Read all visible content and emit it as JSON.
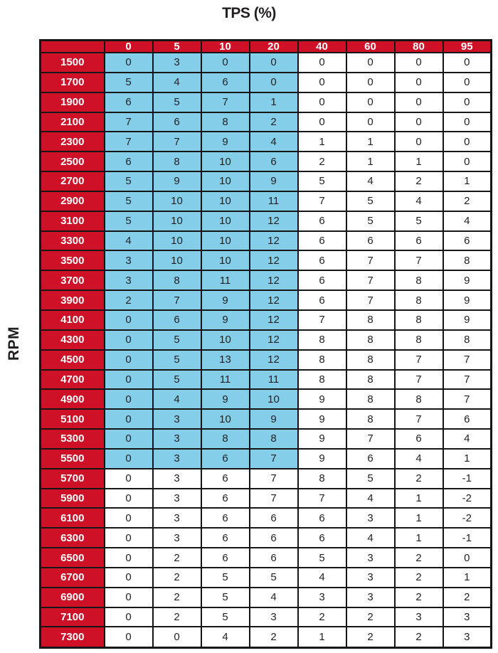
{
  "title": "TPS (%)",
  "y_axis_label": "RPM",
  "colors": {
    "header_bg": "#ce1126",
    "header_text": "#ffffff",
    "highlight_bg": "#85ceea",
    "cell_bg": "#ffffff",
    "cell_text": "#231f20",
    "border": "#161616"
  },
  "chart_data": {
    "type": "table",
    "title": "TPS (%)",
    "xlabel": "TPS (%)",
    "ylabel": "RPM",
    "columns": [
      "0",
      "5",
      "10",
      "20",
      "40",
      "60",
      "80",
      "95"
    ],
    "rpm": [
      "1500",
      "1700",
      "1900",
      "2100",
      "2300",
      "2500",
      "2700",
      "2900",
      "3100",
      "3300",
      "3500",
      "3700",
      "3900",
      "4100",
      "4300",
      "4500",
      "4700",
      "4900",
      "5100",
      "5300",
      "5500",
      "5700",
      "5900",
      "6100",
      "6300",
      "6500",
      "6700",
      "6900",
      "7100",
      "7300"
    ],
    "values": [
      [
        0,
        3,
        0,
        0,
        0,
        0,
        0,
        0
      ],
      [
        5,
        4,
        6,
        0,
        0,
        0,
        0,
        0
      ],
      [
        6,
        5,
        7,
        1,
        0,
        0,
        0,
        0
      ],
      [
        7,
        6,
        8,
        2,
        0,
        0,
        0,
        0
      ],
      [
        7,
        7,
        9,
        4,
        1,
        1,
        0,
        0
      ],
      [
        6,
        8,
        10,
        6,
        2,
        1,
        1,
        0
      ],
      [
        5,
        9,
        10,
        9,
        5,
        4,
        2,
        1
      ],
      [
        5,
        10,
        10,
        11,
        7,
        5,
        4,
        2
      ],
      [
        5,
        10,
        10,
        12,
        6,
        5,
        5,
        4
      ],
      [
        4,
        10,
        10,
        12,
        6,
        6,
        6,
        6
      ],
      [
        3,
        10,
        10,
        12,
        6,
        7,
        7,
        8
      ],
      [
        3,
        8,
        11,
        12,
        6,
        7,
        8,
        9
      ],
      [
        2,
        7,
        9,
        12,
        6,
        7,
        8,
        9
      ],
      [
        0,
        6,
        9,
        12,
        7,
        8,
        8,
        9
      ],
      [
        0,
        5,
        10,
        12,
        8,
        8,
        8,
        8
      ],
      [
        0,
        5,
        13,
        12,
        8,
        8,
        7,
        7
      ],
      [
        0,
        5,
        11,
        11,
        8,
        8,
        7,
        7
      ],
      [
        0,
        4,
        9,
        10,
        9,
        8,
        8,
        7
      ],
      [
        0,
        3,
        10,
        9,
        9,
        8,
        7,
        6
      ],
      [
        0,
        3,
        8,
        8,
        9,
        7,
        6,
        4
      ],
      [
        0,
        3,
        6,
        7,
        9,
        6,
        4,
        1
      ],
      [
        0,
        3,
        6,
        7,
        8,
        5,
        2,
        -1
      ],
      [
        0,
        3,
        6,
        7,
        7,
        4,
        1,
        -2
      ],
      [
        0,
        3,
        6,
        6,
        6,
        3,
        1,
        -2
      ],
      [
        0,
        3,
        6,
        6,
        6,
        4,
        1,
        -1
      ],
      [
        0,
        2,
        6,
        6,
        5,
        3,
        2,
        0
      ],
      [
        0,
        2,
        5,
        5,
        4,
        3,
        2,
        1
      ],
      [
        0,
        2,
        5,
        4,
        3,
        3,
        2,
        2
      ],
      [
        0,
        2,
        5,
        3,
        2,
        2,
        3,
        3
      ],
      [
        0,
        0,
        4,
        2,
        1,
        2,
        2,
        3
      ]
    ],
    "highlight": {
      "description": "light-blue highlighted cells",
      "rpm_range": [
        "1500",
        "5500"
      ],
      "tps_columns_highlighted": [
        "0",
        "5",
        "10",
        "20"
      ],
      "highlighted_row_count": 21,
      "highlighted_cols_per_row": 4
    },
    "grid": true,
    "legend_position": "none"
  }
}
